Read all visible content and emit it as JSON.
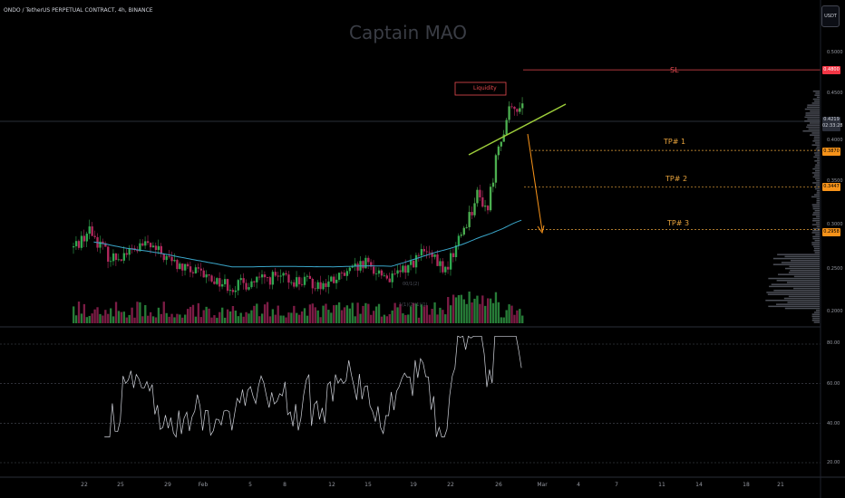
{
  "header": {
    "symbol_line": "ONDO / TetherUS PERPETUAL CONTRACT, 4h, BINANCE",
    "watermark": "Captain MAO",
    "currency_button": "USDT"
  },
  "annotations": {
    "sl": "SL",
    "tp1": "TP# 1",
    "tp2": "TP# 2",
    "tp3": "TP# 3",
    "liquidity": "Liquidity",
    "overlay_a": "00/1(2)",
    "overlay_b": "1(1)(2)(1)(1)"
  },
  "price_axis": {
    "ticks": [
      "0.5000",
      "0.4500",
      "0.4000",
      "0.3500",
      "0.3000",
      "0.2500",
      "0.2000"
    ],
    "tags": {
      "sl": "0.4800",
      "current_price": "0.4219",
      "countdown": "02:33:28",
      "tp1": "0.3870",
      "tp2": "0.3447",
      "tp3": "0.2958"
    }
  },
  "rsi_axis": {
    "ticks": [
      "80.00",
      "60.00",
      "40.00",
      "20.00"
    ]
  },
  "time_axis": {
    "ticks": [
      "22",
      "25",
      "29",
      "Feb",
      "5",
      "8",
      "12",
      "15",
      "19",
      "22",
      "26",
      "Mar",
      "4",
      "7",
      "11",
      "14",
      "18",
      "21"
    ]
  },
  "colors": {
    "background": "#000000",
    "up": "#26a69a",
    "up_bright": "#4caf50",
    "down": "#b2295e",
    "ma": "#3aa6c9",
    "sl_line": "#e84a50",
    "tp_line": "#e8a33c",
    "trendline": "#9ccc3a",
    "arrow": "#f7931a"
  },
  "chart_data": {
    "type": "candlestick",
    "timeframe": "4h",
    "price_range": [
      0.195,
      0.52
    ],
    "rsi_range": [
      15,
      85
    ],
    "levels": {
      "sl": 0.48,
      "current": 0.4219,
      "tp1": 0.387,
      "tp2": 0.3447,
      "tp3": 0.2958
    },
    "rsi_levels": [
      80,
      60,
      40,
      20
    ]
  }
}
